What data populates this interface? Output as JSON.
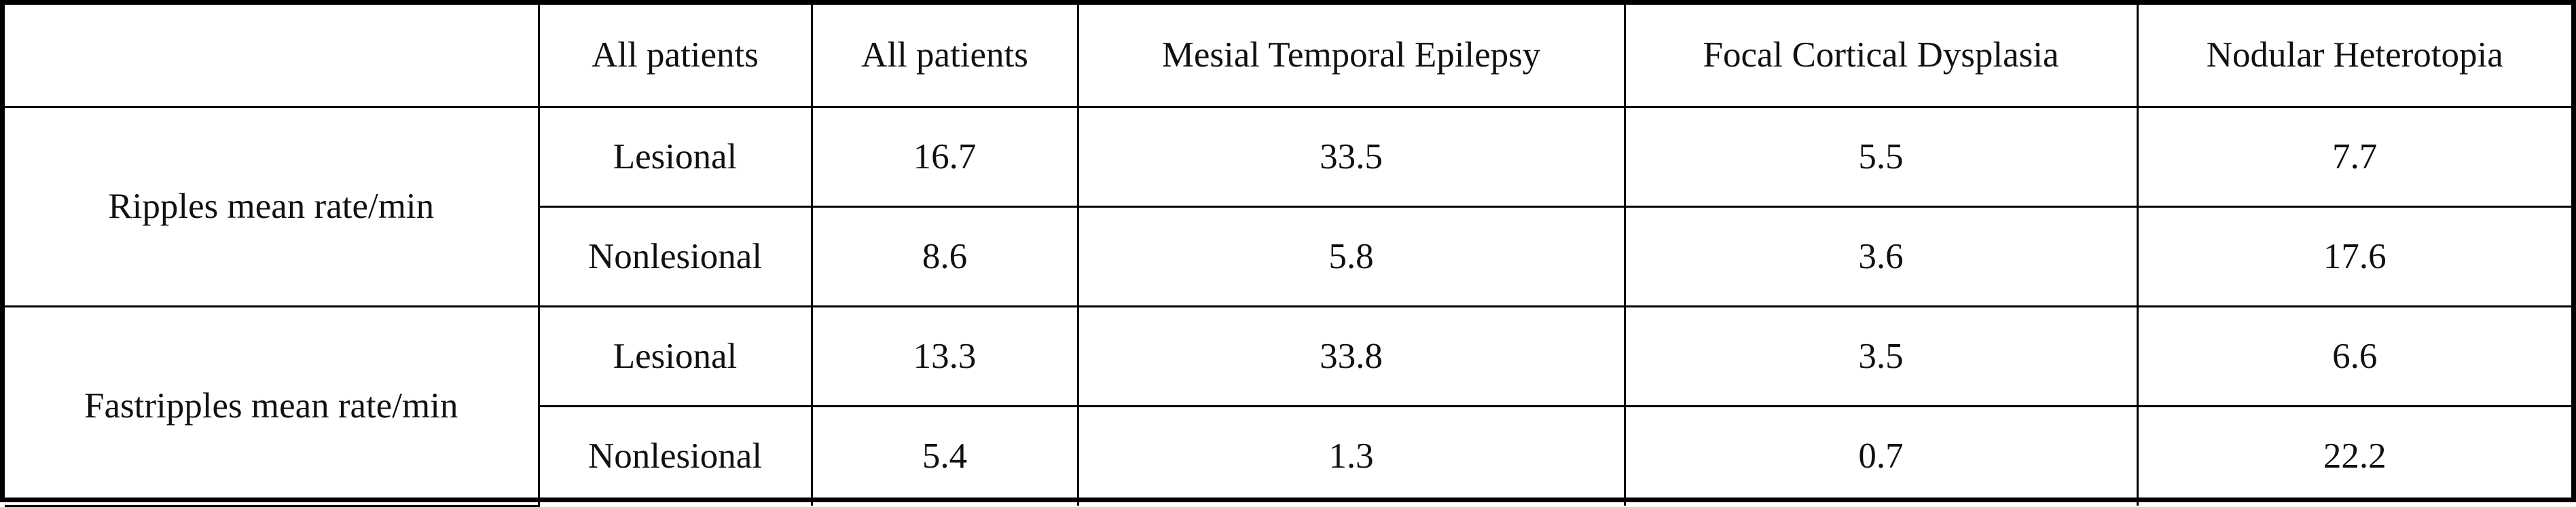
{
  "table": {
    "header": [
      "All patients",
      "All patients",
      "Mesial Temporal Epilepsy",
      "Focal Cortical Dysplasia",
      "Nodular Heterotopia"
    ],
    "groups": [
      {
        "label": "Ripples mean rate/min",
        "rows": [
          {
            "label": "Lesional",
            "values": [
              16.7,
              33.5,
              5.5,
              7.7
            ]
          },
          {
            "label": "Nonlesional",
            "values": [
              8.6,
              5.8,
              3.6,
              17.6
            ]
          }
        ]
      },
      {
        "label": "Fastripples mean rate/min",
        "rows": [
          {
            "label": "Lesional",
            "values": [
              13.3,
              33.8,
              3.5,
              6.6
            ]
          },
          {
            "label": "Nonlesional",
            "values": [
              5.4,
              1.3,
              0.7,
              22.2
            ]
          }
        ]
      }
    ]
  }
}
